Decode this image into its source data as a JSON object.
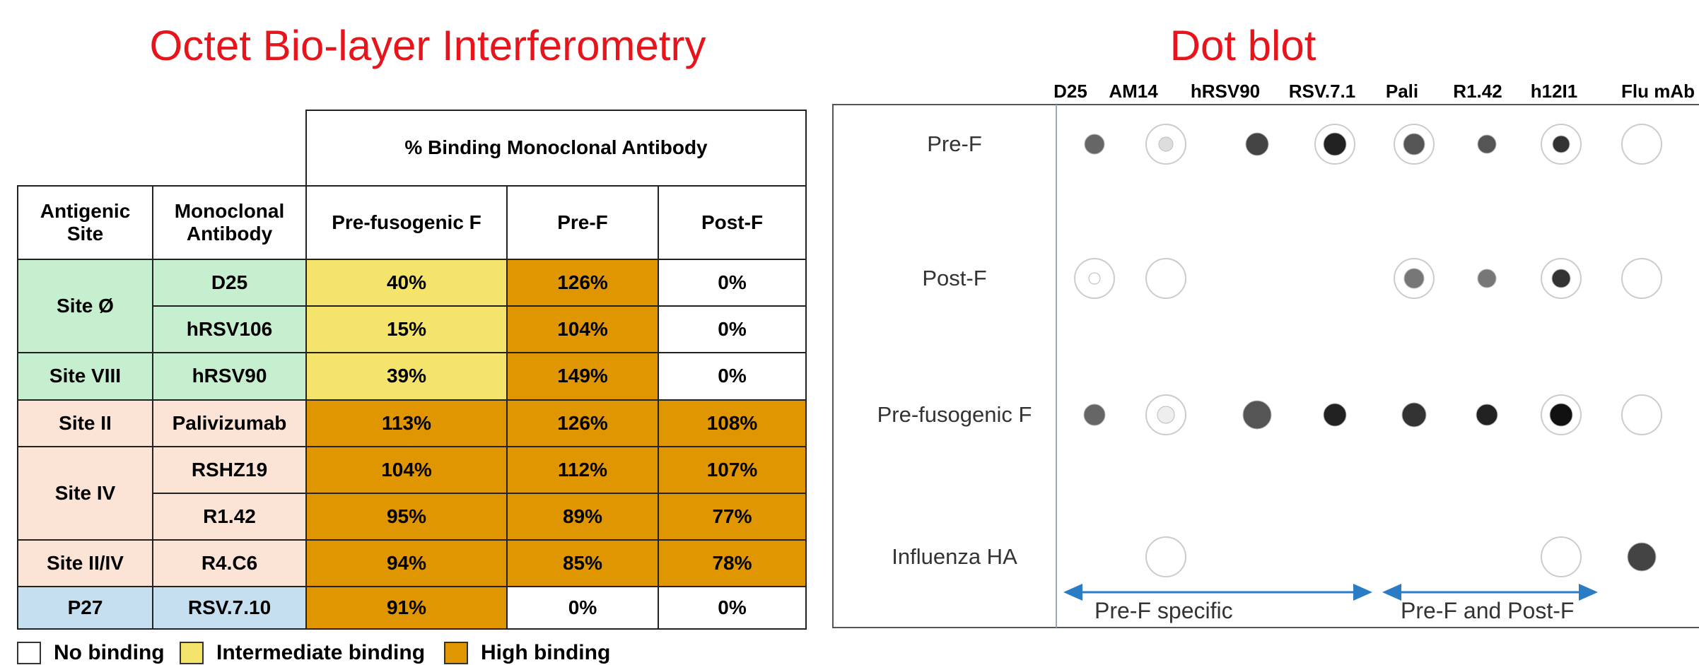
{
  "left_title": "Octet Bio-layer Interferometry",
  "table": {
    "group_header": "% Binding Monoclonal Antibody",
    "headers": [
      "Antigenic Site",
      "Monoclonal Antibody",
      "Pre-fusogenic F",
      "Pre-F",
      "Post-F"
    ],
    "groups": [
      {
        "site": "Site Ø",
        "color": "#c6efd0",
        "rows": [
          {
            "antibody": "D25",
            "values": [
              "40%",
              "126%",
              "0%"
            ],
            "colors": [
              "#f4e46c",
              "#e09600",
              "#ffffff"
            ]
          },
          {
            "antibody": "hRSV106",
            "values": [
              "15%",
              "104%",
              "0%"
            ],
            "colors": [
              "#f4e46c",
              "#e09600",
              "#ffffff"
            ]
          }
        ]
      },
      {
        "site": "Site VIII",
        "color": "#c6efd0",
        "rows": [
          {
            "antibody": "hRSV90",
            "values": [
              "39%",
              "149%",
              "0%"
            ],
            "colors": [
              "#f4e46c",
              "#e09600",
              "#ffffff"
            ]
          }
        ]
      },
      {
        "site": "Site II",
        "color": "#fbe3d6",
        "rows": [
          {
            "antibody": "Palivizumab",
            "values": [
              "113%",
              "126%",
              "108%"
            ],
            "colors": [
              "#e09600",
              "#e09600",
              "#e09600"
            ]
          }
        ]
      },
      {
        "site": "Site IV",
        "color": "#fbe3d6",
        "rows": [
          {
            "antibody": "RSHZ19",
            "values": [
              "104%",
              "112%",
              "107%"
            ],
            "colors": [
              "#e09600",
              "#e09600",
              "#e09600"
            ]
          },
          {
            "antibody": "R1.42",
            "values": [
              "95%",
              "89%",
              "77%"
            ],
            "colors": [
              "#e09600",
              "#e09600",
              "#e09600"
            ]
          }
        ]
      },
      {
        "site": "Site II/IV",
        "color": "#fbe3d6",
        "rows": [
          {
            "antibody": "R4.C6",
            "values": [
              "94%",
              "85%",
              "78%"
            ],
            "colors": [
              "#e09600",
              "#e09600",
              "#e09600"
            ]
          }
        ]
      },
      {
        "site": "P27",
        "color": "#c5dff0",
        "rows": [
          {
            "antibody": "RSV.7.10",
            "values": [
              "91%",
              "0%",
              "0%"
            ],
            "colors": [
              "#e09600",
              "#ffffff",
              "#ffffff"
            ]
          }
        ]
      }
    ]
  },
  "legend": [
    {
      "label": "No binding",
      "color": "#ffffff"
    },
    {
      "label": "Intermediate binding",
      "color": "#f4e46c"
    },
    {
      "label": "High binding",
      "color": "#e09600"
    }
  ],
  "right_title": "Dot blot",
  "dot_blot": {
    "columns": [
      "D25",
      "AM14",
      "hRSV90",
      "RSV.7.1",
      "Pali",
      "R1.42",
      "h12I1",
      "Flu mAb"
    ],
    "rows": [
      "Pre-F",
      "Post-F",
      "Pre-fusogenic F",
      "Influenza HA"
    ],
    "annotations": [
      "Pre-F specific",
      "Pre-F and Post-F"
    ]
  }
}
